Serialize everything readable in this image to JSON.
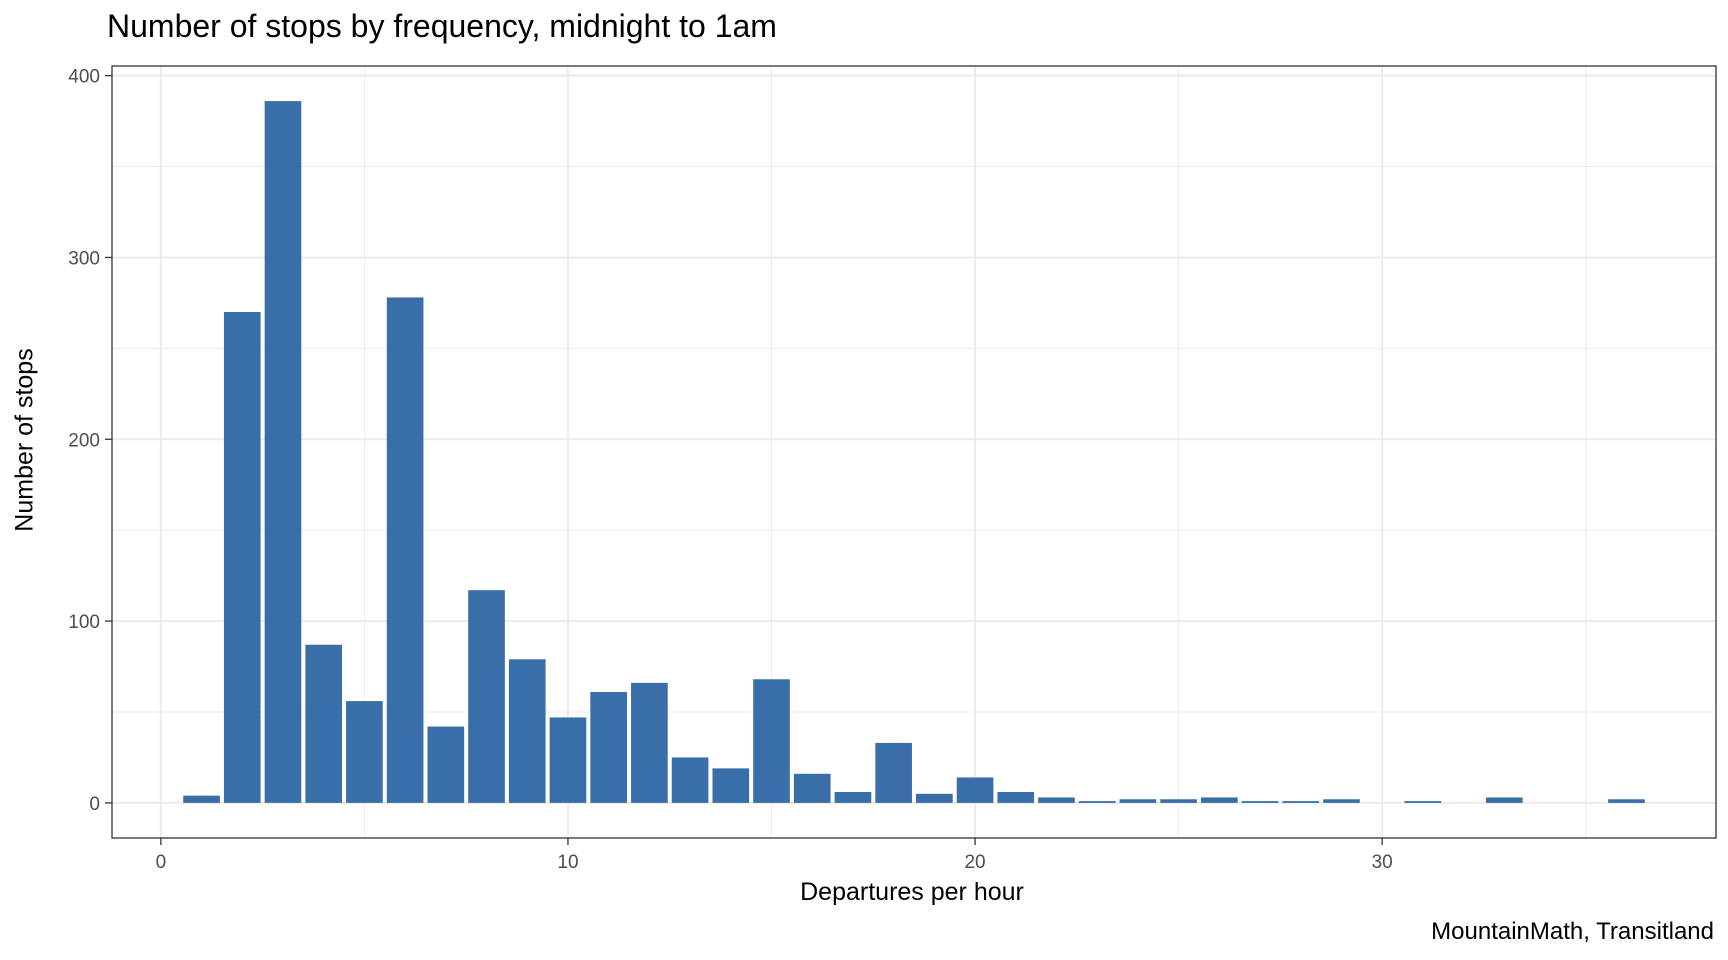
{
  "chart_data": {
    "type": "bar",
    "title": "Number of stops by frequency, midnight to 1am",
    "xlabel": "Departures per hour",
    "ylabel": "Number of stops",
    "caption": "MountainMath, Transitland",
    "x": [
      1,
      2,
      3,
      4,
      5,
      6,
      7,
      8,
      9,
      10,
      11,
      12,
      13,
      14,
      15,
      16,
      17,
      18,
      19,
      20,
      21,
      22,
      23,
      24,
      25,
      26,
      27,
      28,
      29,
      31,
      33,
      36
    ],
    "values": [
      4,
      270,
      386,
      87,
      56,
      278,
      42,
      117,
      79,
      47,
      61,
      66,
      25,
      19,
      68,
      16,
      6,
      33,
      5,
      14,
      6,
      3,
      1,
      2,
      2,
      3,
      1,
      1,
      2,
      1,
      3,
      2
    ],
    "xlim": [
      -1.2,
      38.2
    ],
    "ylim": [
      -19.3,
      405.3
    ],
    "xticks": [
      0,
      10,
      20,
      30
    ],
    "yticks": [
      0,
      100,
      200,
      300,
      400
    ],
    "grid": true,
    "bar_color": "#3a6ea8",
    "grid_color": "#ebebeb",
    "panel_border_color": "#333333"
  }
}
